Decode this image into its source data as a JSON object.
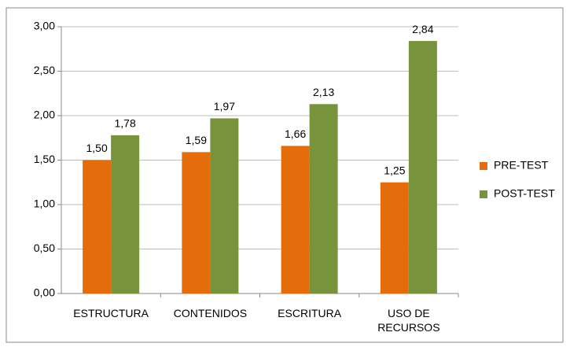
{
  "chart_data": {
    "type": "bar",
    "categories": [
      "ESTRUCTURA",
      "CONTENIDOS",
      "ESCRITURA",
      "USO DE RECURSOS"
    ],
    "series": [
      {
        "name": "PRE-TEST",
        "color": "#e46c0a",
        "values": [
          1.5,
          1.59,
          1.66,
          1.25
        ],
        "value_labels": [
          "1,50",
          "1,59",
          "1,66",
          "1,25"
        ]
      },
      {
        "name": "POST-TEST",
        "color": "#77933c",
        "values": [
          1.78,
          1.97,
          2.13,
          2.84
        ],
        "value_labels": [
          "1,78",
          "1,97",
          "2,13",
          "2,84"
        ]
      }
    ],
    "ylim": [
      0,
      3
    ],
    "yticks": [
      {
        "value": 0,
        "label": "0,00"
      },
      {
        "value": 0.5,
        "label": "0,50"
      },
      {
        "value": 1,
        "label": "1,00"
      },
      {
        "value": 1.5,
        "label": "1,50"
      },
      {
        "value": 2,
        "label": "2,00"
      },
      {
        "value": 2.5,
        "label": "2,50"
      },
      {
        "value": 3,
        "label": "3,00"
      }
    ],
    "grid": true,
    "legend": "right"
  }
}
